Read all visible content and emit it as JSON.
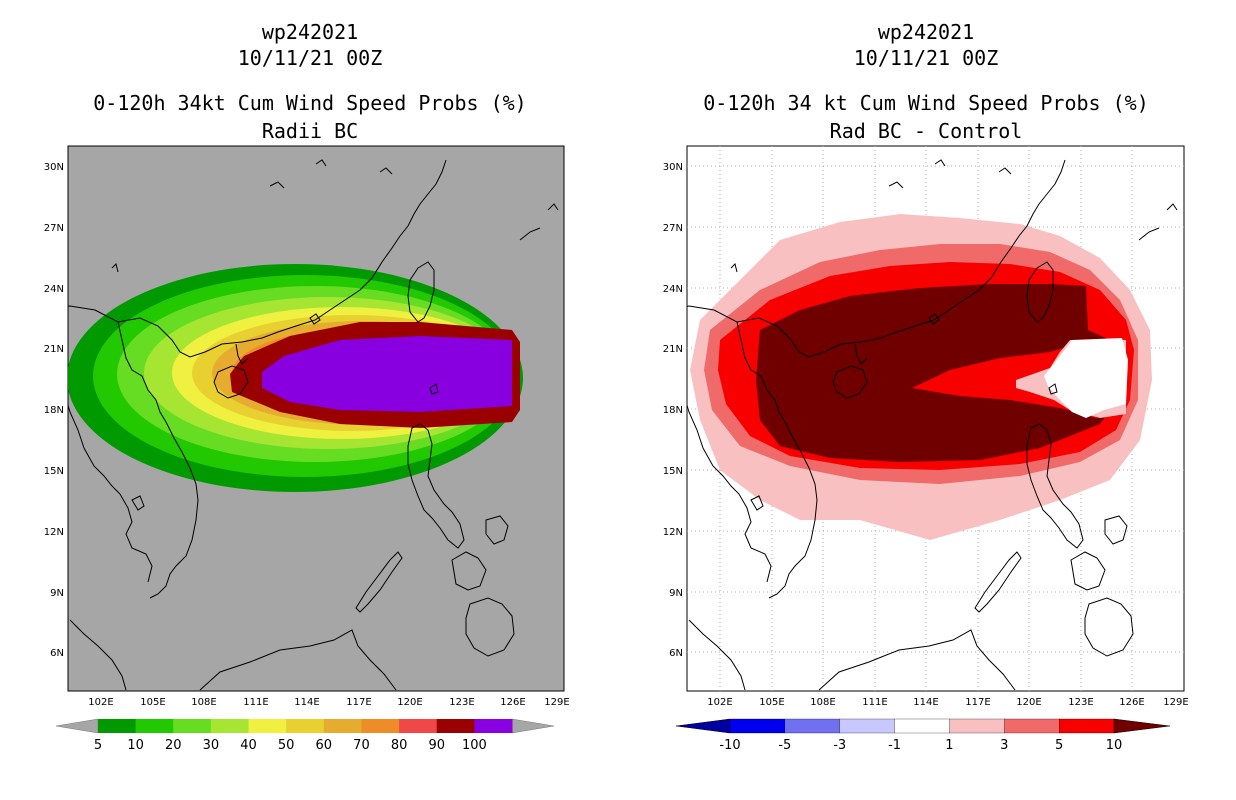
{
  "left": {
    "line1": "wp242021",
    "line2": "10/11/21 00Z",
    "line3": "0-120h 34kt Cum Wind Speed Probs (%)",
    "line4": "Radii BC",
    "colorbar": {
      "labels": [
        "5",
        "10",
        "20",
        "30",
        "40",
        "50",
        "60",
        "70",
        "80",
        "90",
        "100"
      ],
      "colors": [
        "#009a00",
        "#22c800",
        "#66dd22",
        "#a6e633",
        "#f0f040",
        "#e8d030",
        "#e6ac30",
        "#ee8c28",
        "#f04848",
        "#9a0000",
        "#8800e0"
      ]
    }
  },
  "right": {
    "line1": "wp242021",
    "line2": "10/11/21 00Z",
    "line3": "0-120h 34 kt Cum Wind Speed Probs (%)",
    "line4": "Rad BC - Control",
    "colorbar": {
      "labels": [
        "-10",
        "-5",
        "-3",
        "-1",
        "1",
        "3",
        "5",
        "10"
      ],
      "colors": [
        "#0000a0",
        "#0000f0",
        "#7070f0",
        "#c8c8ff",
        "#ffffff",
        "#f8c0c0",
        "#f06a6a",
        "#f80000",
        "#700000"
      ]
    }
  },
  "axes": {
    "lat_labels": [
      "30N",
      "27N",
      "24N",
      "21N",
      "18N",
      "15N",
      "12N",
      "9N",
      "6N"
    ],
    "lon_labels": [
      "102E",
      "105E",
      "108E",
      "111E",
      "114E",
      "117E",
      "120E",
      "123E",
      "126E",
      "129E"
    ]
  }
}
